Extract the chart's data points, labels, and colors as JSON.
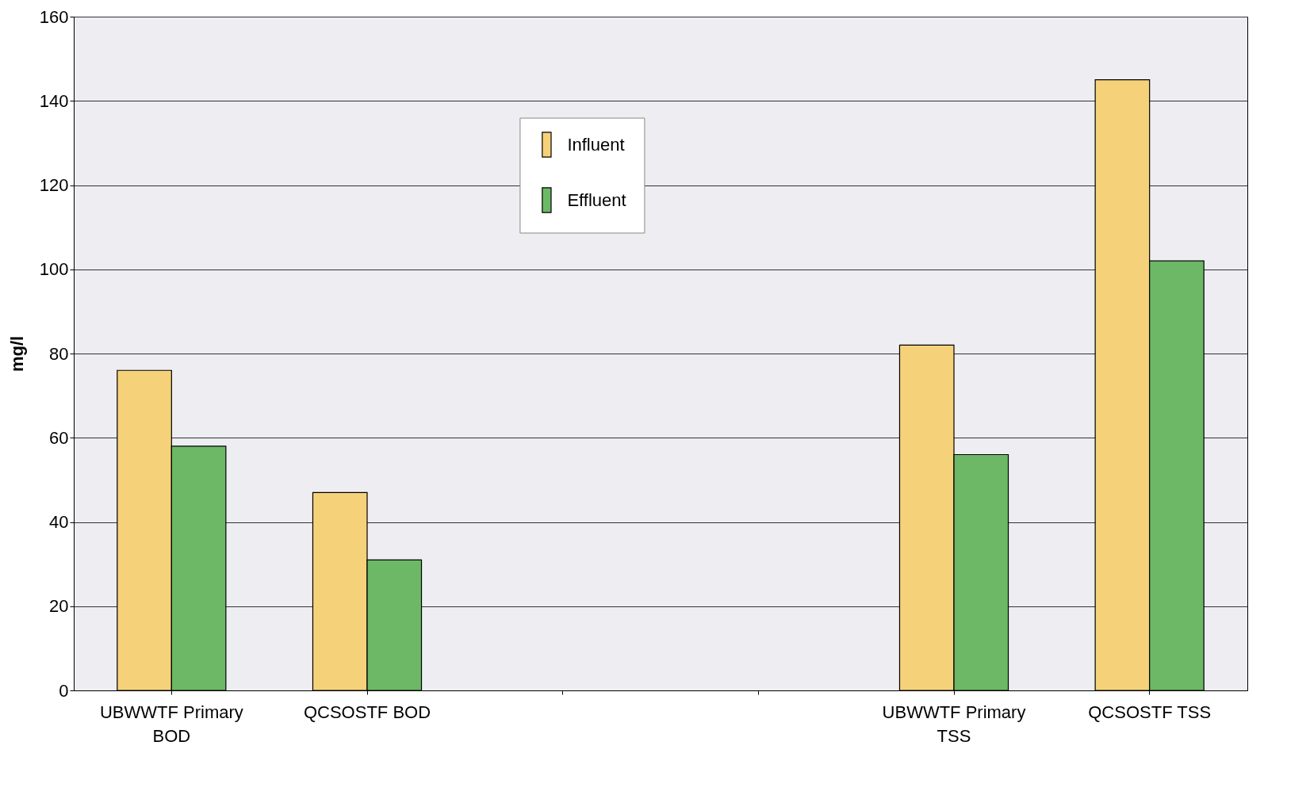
{
  "chart_data": {
    "type": "bar",
    "ylabel": "mg/l",
    "categories": [
      "UBWWTF Primary BOD",
      "QCSOSTF BOD",
      null,
      null,
      "UBWWTF Primary TSS",
      "QCSOSTF TSS"
    ],
    "series": [
      {
        "name": "Influent",
        "color": "#f5d27a",
        "values": [
          76,
          47,
          null,
          null,
          82,
          145
        ]
      },
      {
        "name": "Effluent",
        "color": "#6cb866",
        "values": [
          58,
          31,
          null,
          null,
          56,
          102
        ]
      }
    ],
    "ylim": [
      0,
      160
    ],
    "yticks": [
      0,
      20,
      40,
      60,
      80,
      100,
      120,
      140,
      160
    ],
    "grid": "y",
    "legend": "top"
  }
}
